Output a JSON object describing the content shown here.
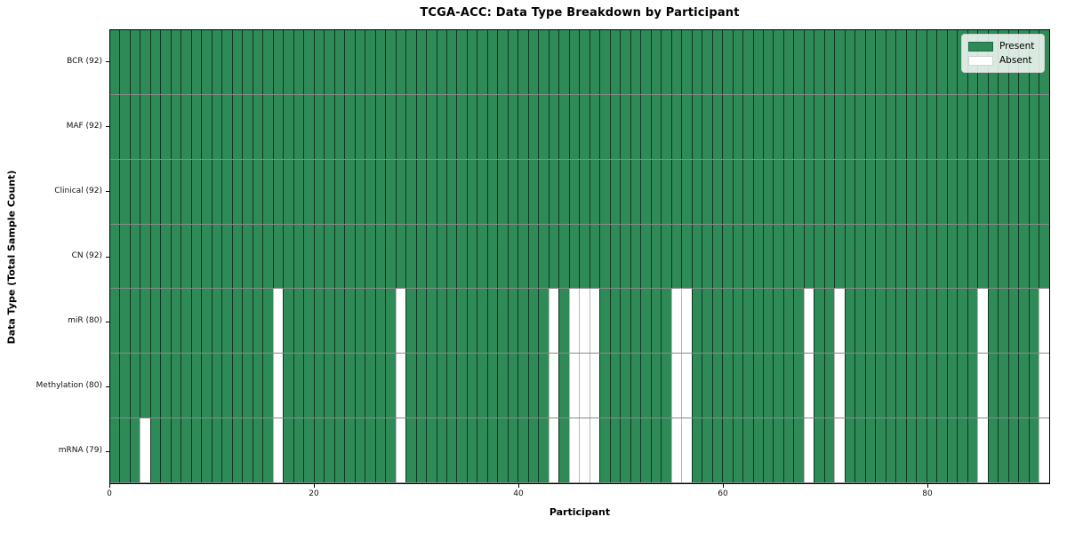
{
  "chart_data": {
    "type": "heatmap",
    "title": "TCGA-ACC: Data Type Breakdown by Participant",
    "xlabel": "Participant",
    "ylabel": "Data Type (Total Sample Count)",
    "x_ticks": [
      0,
      20,
      40,
      60,
      80
    ],
    "x_range": [
      0,
      92
    ],
    "n_participants": 92,
    "grid": false,
    "legend_position": "upper right",
    "legend": [
      {
        "label": "Present",
        "color": "#2e8b57"
      },
      {
        "label": "Absent",
        "color": "#ffffff"
      }
    ],
    "rows": [
      {
        "label": "BCR (92)",
        "data_type": "BCR",
        "present_count": 92,
        "absent_participants": []
      },
      {
        "label": "MAF (92)",
        "data_type": "MAF",
        "present_count": 92,
        "absent_participants": []
      },
      {
        "label": "Clinical (92)",
        "data_type": "Clinical",
        "present_count": 92,
        "absent_participants": []
      },
      {
        "label": "CN (92)",
        "data_type": "CN",
        "present_count": 92,
        "absent_participants": []
      },
      {
        "label": "miR (80)",
        "data_type": "miR",
        "present_count": 80,
        "absent_participants": [
          16,
          28,
          43,
          45,
          46,
          47,
          55,
          56,
          68,
          71,
          85,
          91
        ]
      },
      {
        "label": "Methylation (80)",
        "data_type": "Methylation",
        "present_count": 80,
        "absent_participants": [
          16,
          28,
          43,
          45,
          46,
          47,
          55,
          56,
          68,
          71,
          85,
          91
        ]
      },
      {
        "label": "mRNA (79)",
        "data_type": "mRNA",
        "present_count": 79,
        "absent_participants": [
          3,
          16,
          28,
          43,
          45,
          46,
          47,
          55,
          56,
          68,
          71,
          85,
          91
        ]
      }
    ],
    "colors": {
      "present": "#2e8b57",
      "absent": "#ffffff",
      "cell_border": "rgba(0,0,0,0.62)",
      "absent_cell_border": "#b9b9b9",
      "row_separator": "#8a8a8a",
      "spine": "#000000"
    }
  }
}
